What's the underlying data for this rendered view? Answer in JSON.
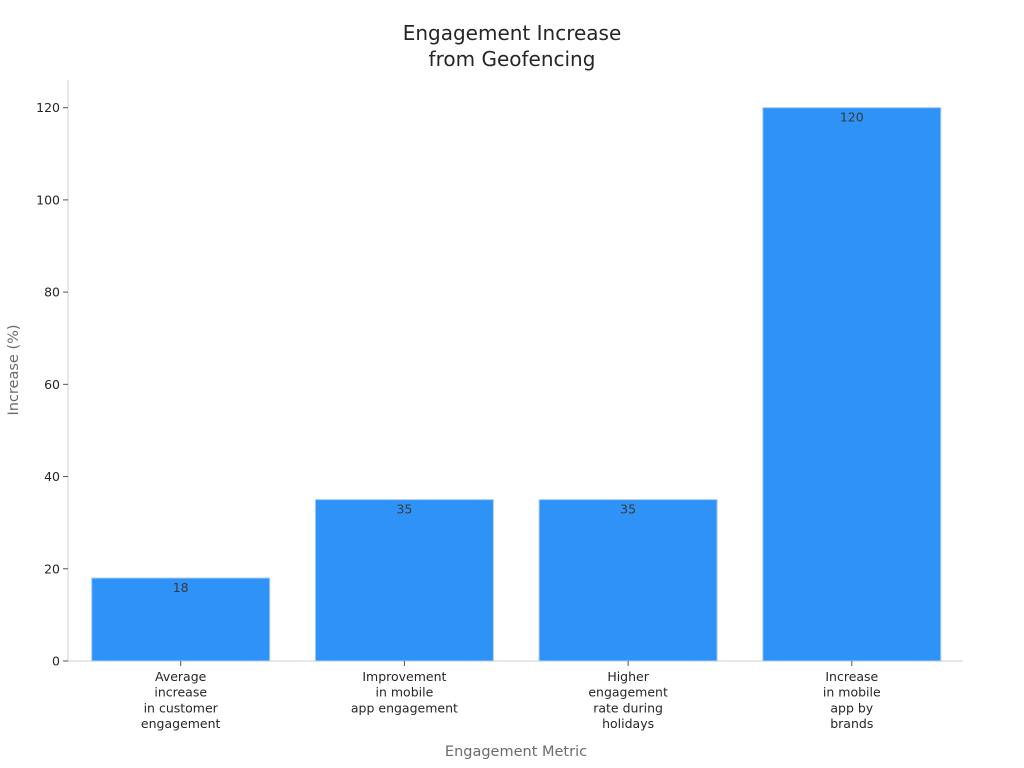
{
  "chart_data": {
    "type": "bar",
    "title": [
      "Engagement Increase",
      "from Geofencing"
    ],
    "xlabel": "Engagement Metric",
    "ylabel": "Increase (%)",
    "categories": [
      [
        "Average",
        "increase",
        "in customer",
        "engagement"
      ],
      [
        "Improvement",
        "in mobile",
        "app engagement"
      ],
      [
        "Higher",
        "engagement",
        "rate during",
        "holidays"
      ],
      [
        "Increase",
        "in mobile",
        "app by",
        "brands"
      ]
    ],
    "values": [
      18,
      35,
      35,
      120
    ],
    "data_labels": [
      "18",
      "35",
      "35",
      "120"
    ],
    "yticks": [
      0,
      20,
      40,
      60,
      80,
      100,
      120
    ],
    "ylim": [
      0,
      126
    ],
    "bar_color": "#2f92f7",
    "bar_edge_color": "#a9cdf5",
    "grid": false,
    "legend": "none"
  }
}
